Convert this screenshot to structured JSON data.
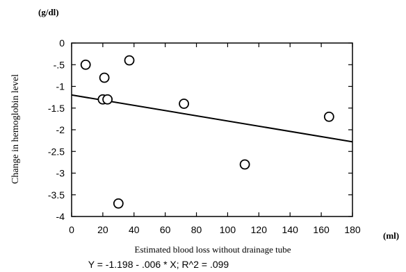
{
  "chart_data": {
    "type": "scatter",
    "unit_label": "(g/dl)",
    "ylabel": "Change in hemoglobin level",
    "xlabel": "Estimated blood loss without drainage tube",
    "xunit_label": "(ml)",
    "equation": "Y = -1.198 - .006 * X; R^2 = .099",
    "xlim": [
      0,
      180
    ],
    "ylim": [
      -4,
      0
    ],
    "xticks": [
      0,
      20,
      40,
      60,
      80,
      100,
      120,
      140,
      160,
      180
    ],
    "xtick_labels": [
      "0",
      "20",
      "40",
      "60",
      "80",
      "100",
      "120",
      "140",
      "160",
      "180"
    ],
    "yticks": [
      0,
      -0.5,
      -1,
      -1.5,
      -2,
      -2.5,
      -3,
      -3.5,
      -4
    ],
    "ytick_labels": [
      "0",
      "-.5",
      "-1",
      "-1.5",
      "-2",
      "-2.5",
      "-3",
      "-3.5",
      "-4"
    ],
    "points": [
      {
        "x": 9,
        "y": -0.5
      },
      {
        "x": 21,
        "y": -0.8
      },
      {
        "x": 20,
        "y": -1.3
      },
      {
        "x": 23,
        "y": -1.3
      },
      {
        "x": 37,
        "y": -0.4
      },
      {
        "x": 30,
        "y": -3.7
      },
      {
        "x": 72,
        "y": -1.4
      },
      {
        "x": 111,
        "y": -2.8
      },
      {
        "x": 165,
        "y": -1.7
      }
    ],
    "regression": {
      "intercept": -1.198,
      "slope": -0.006
    },
    "grid": false,
    "legend": "none",
    "colors": {
      "marker_fill": "#ffffff",
      "stroke": "#000000"
    }
  }
}
